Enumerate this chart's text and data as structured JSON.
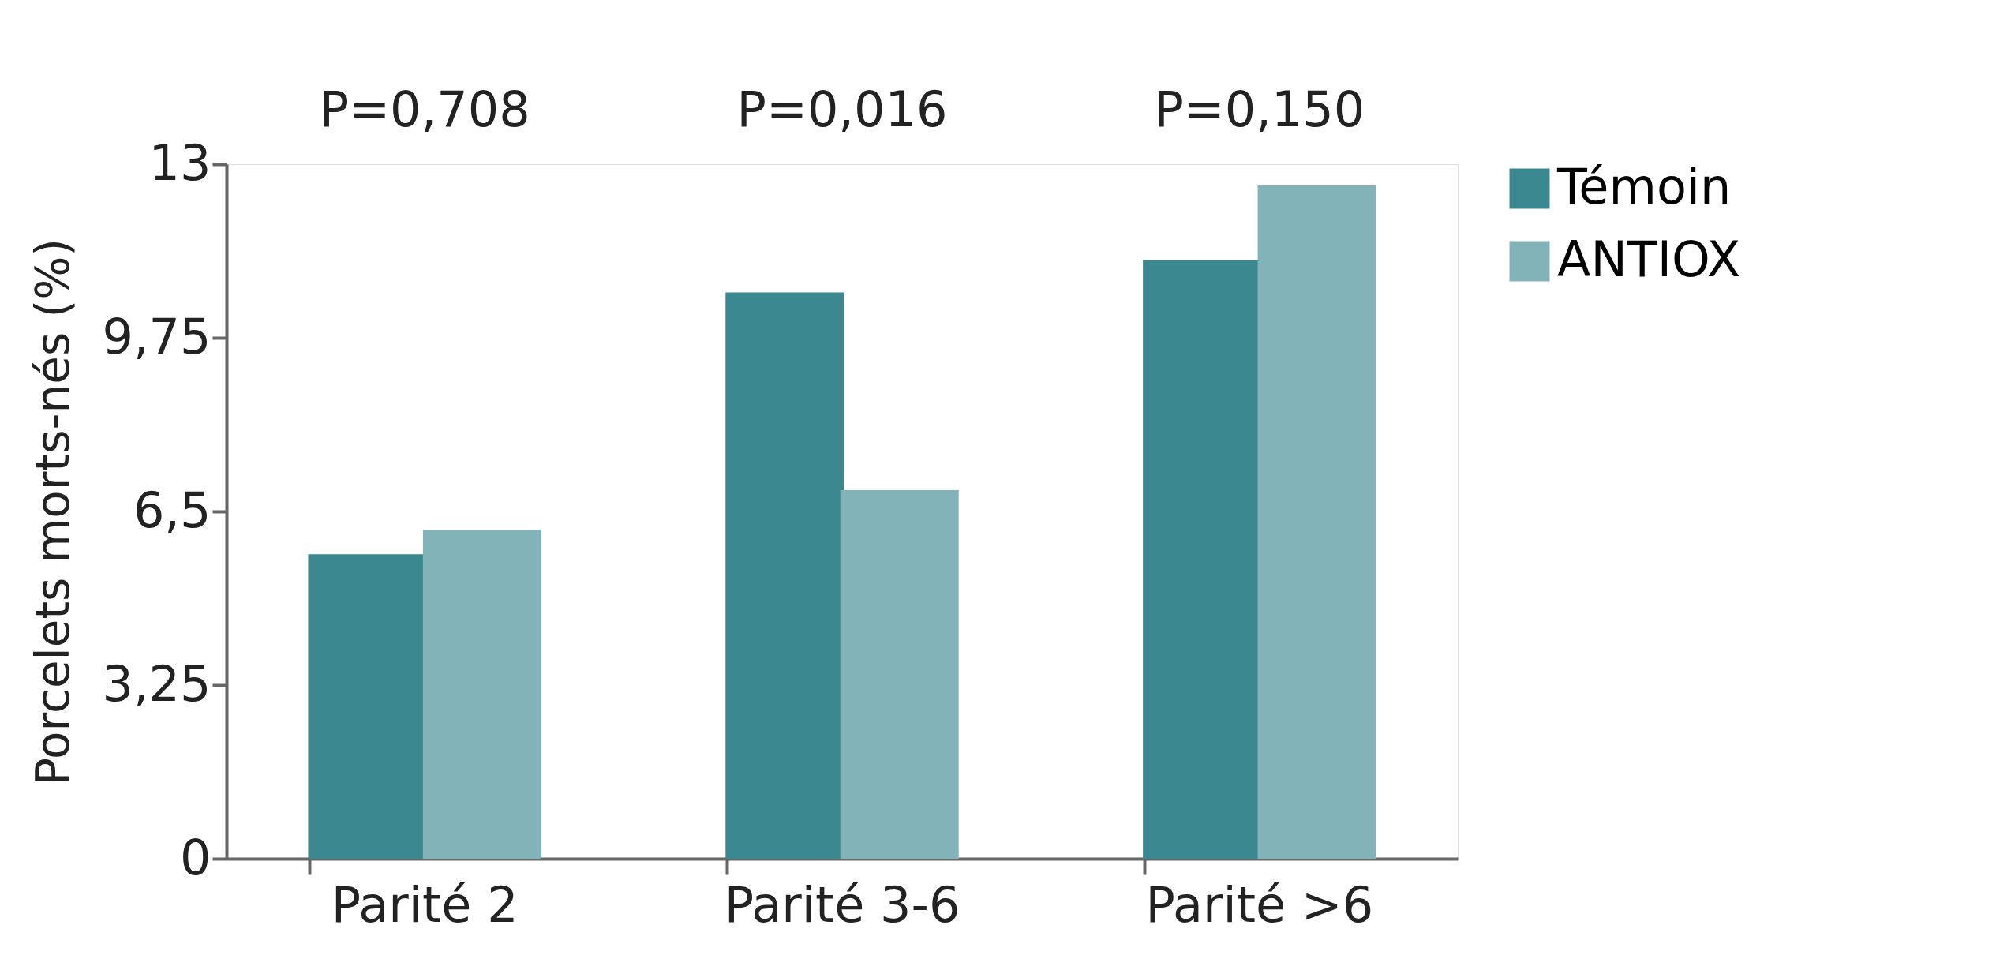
{
  "chart_data": {
    "type": "bar",
    "ylabel": "Porcelets morts-nés (%)",
    "categories": [
      "Parité 2",
      "Parité 3-6",
      "Parité >6"
    ],
    "series": [
      {
        "name": "Témoin",
        "color": "#3b8890",
        "values": [
          5.7,
          10.6,
          11.2
        ]
      },
      {
        "name": "ANTIOX",
        "color": "#82b3b9",
        "values": [
          6.15,
          6.9,
          12.6
        ]
      }
    ],
    "ylim": [
      0,
      13
    ],
    "yticks": [
      0,
      {
        "value": 3.25,
        "label": "3,25"
      },
      {
        "value": 6.5,
        "label": "6,5"
      },
      {
        "value": 9.75,
        "label": "9,75"
      },
      13
    ],
    "annotations": [
      "P=0,708",
      "P=0,016",
      "P=0,150"
    ],
    "legend": "right",
    "grid": false
  }
}
